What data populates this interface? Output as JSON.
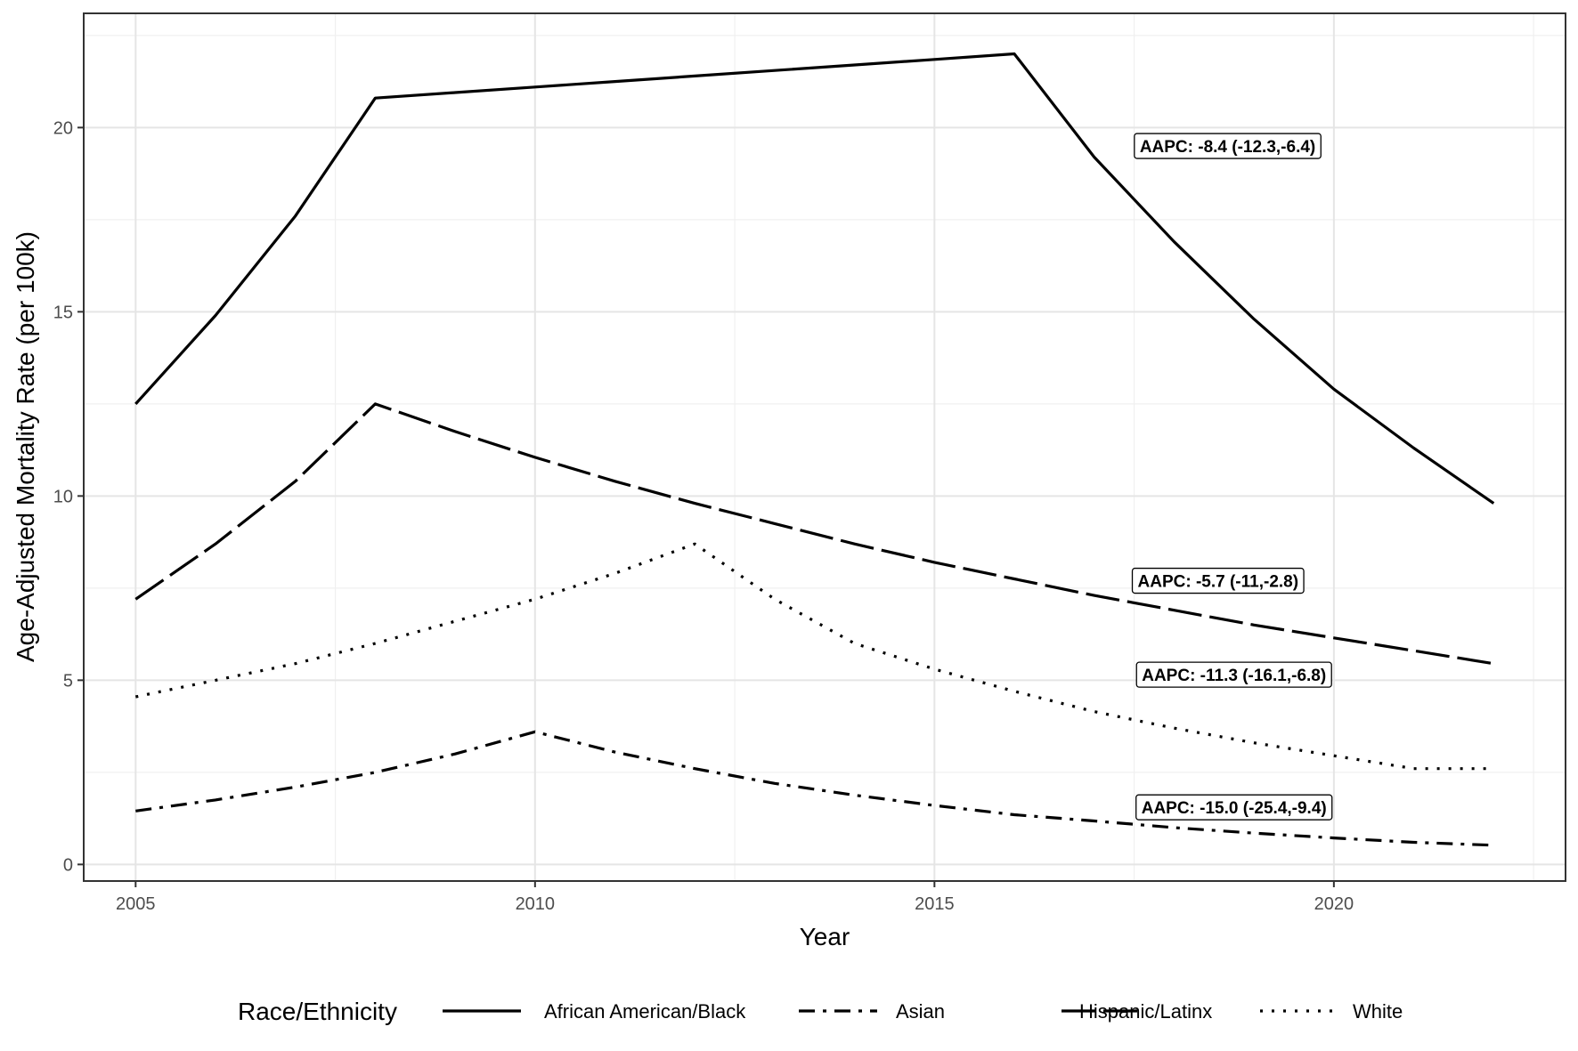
{
  "chart_data": {
    "type": "line",
    "xlabel": "Year",
    "ylabel": "Age-Adjusted Mortality Rate (per 100k)",
    "xlim": [
      2004.35,
      2022.9
    ],
    "ylim": [
      -0.45,
      23.1
    ],
    "x_ticks": [
      "2005",
      "2010",
      "2015",
      "2020"
    ],
    "y_ticks": [
      "0",
      "5",
      "10",
      "15",
      "20"
    ],
    "grid": true,
    "legend": {
      "title": "Race/Ethnicity",
      "placement": "bottom"
    },
    "x": [
      2005,
      2006,
      2007,
      2008,
      2009,
      2010,
      2011,
      2012,
      2013,
      2014,
      2015,
      2016,
      2017,
      2018,
      2019,
      2020,
      2021,
      2022
    ],
    "series": [
      {
        "name": "African American/Black",
        "style": "solid",
        "color": "#000000",
        "values": [
          12.5,
          14.9,
          17.6,
          20.8,
          20.95,
          21.1,
          21.25,
          21.4,
          21.55,
          21.7,
          21.85,
          22.0,
          19.2,
          16.9,
          14.8,
          12.9,
          11.3,
          9.8
        ]
      },
      {
        "name": "Asian",
        "style": "dashdot",
        "color": "#000000",
        "values": [
          1.45,
          1.75,
          2.1,
          2.5,
          3.0,
          3.6,
          3.05,
          2.6,
          2.2,
          1.88,
          1.6,
          1.35,
          1.18,
          1.0,
          0.85,
          0.72,
          0.6,
          0.52
        ]
      },
      {
        "name": "Hispanic/Latinx",
        "style": "longdash",
        "color": "#000000",
        "values": [
          7.2,
          8.7,
          10.4,
          12.5,
          11.75,
          11.05,
          10.4,
          9.8,
          9.25,
          8.7,
          8.2,
          7.75,
          7.3,
          6.9,
          6.5,
          6.15,
          5.8,
          5.45
        ]
      },
      {
        "name": "White",
        "style": "dotted",
        "color": "#000000",
        "values": [
          4.55,
          5.0,
          5.45,
          6.0,
          6.6,
          7.2,
          7.9,
          8.7,
          7.2,
          6.0,
          5.3,
          4.7,
          4.15,
          3.7,
          3.3,
          2.95,
          2.6,
          2.6
        ]
      }
    ],
    "annotations": [
      {
        "text": "AAPC: -8.4 (-12.3,-6.4)",
        "x": 2018.67,
        "y": 19.5
      },
      {
        "text": "AAPC: -5.7 (-11,-2.8)",
        "x": 2018.55,
        "y": 7.7
      },
      {
        "text": "AAPC: -11.3 (-16.1,-6.8)",
        "x": 2018.75,
        "y": 5.15
      },
      {
        "text": "AAPC: -15.0 (-25.4,-9.4)",
        "x": 2018.75,
        "y": 1.55
      }
    ]
  }
}
